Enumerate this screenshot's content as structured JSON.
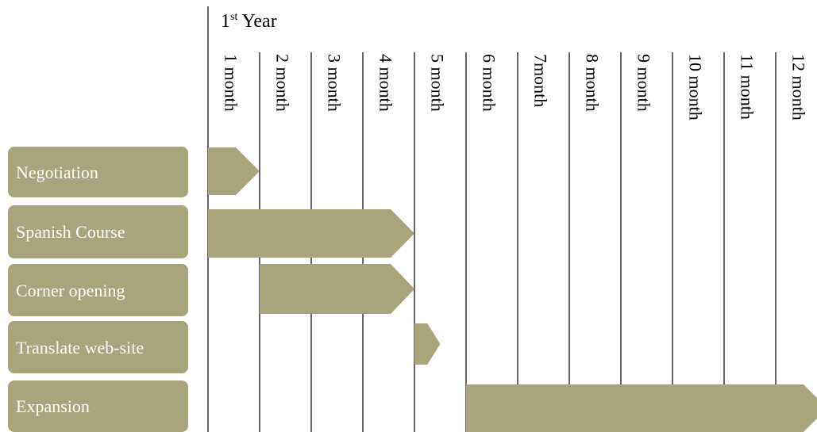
{
  "header": {
    "number": "1",
    "suffix": "st",
    "word": "Year"
  },
  "months": [
    "1 month",
    "2 month",
    "3 month",
    "4 month",
    "5 month",
    "6 month",
    "7month",
    "8 month",
    "9 month",
    "10 month",
    "11 month",
    "12 month"
  ],
  "tasks": [
    {
      "label": "Negotiation",
      "start": 0,
      "end": 1
    },
    {
      "label": "Spanish Course",
      "start": 0,
      "end": 4
    },
    {
      "label": "Corner opening",
      "start": 1,
      "end": 4
    },
    {
      "label": "Translate web-site",
      "start": 4,
      "end": 4.5
    },
    {
      "label": "Expansion",
      "start": 5,
      "end": 12
    }
  ]
}
